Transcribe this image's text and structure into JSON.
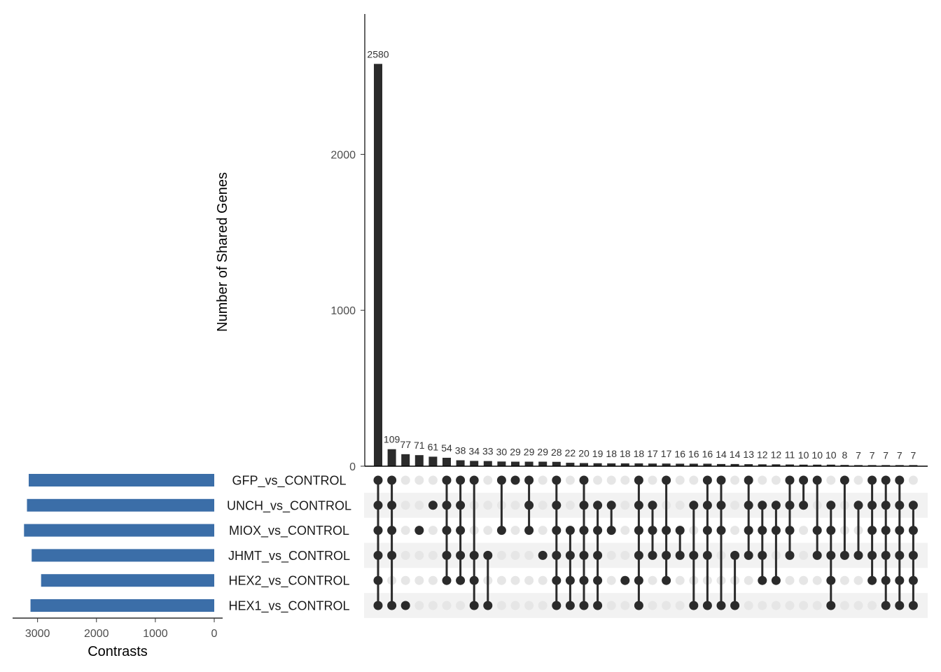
{
  "chart_data": {
    "type": "upset",
    "ylabel": "Number of Shared Genes",
    "set_size_xlabel": "Contrasts",
    "y_ticks": [
      0,
      1000,
      2000
    ],
    "ylim": [
      0,
      2900
    ],
    "set_size_ticks": [
      3000,
      2000,
      1000,
      0
    ],
    "set_size_xlim": [
      3400,
      0
    ],
    "colors": {
      "bar": "#2b2b2b",
      "set_bar": "#3b6ea8",
      "dot_active": "#2b2b2b",
      "dot_inactive": "#e6e6e6",
      "stripe": "#f2f2f2"
    },
    "sets": [
      {
        "name": "GFP_vs_CONTROL",
        "size": 3150
      },
      {
        "name": "UNCH_vs_CONTROL",
        "size": 3180
      },
      {
        "name": "MIOX_vs_CONTROL",
        "size": 3230
      },
      {
        "name": "JHMT_vs_CONTROL",
        "size": 3100
      },
      {
        "name": "HEX2_vs_CONTROL",
        "size": 2940
      },
      {
        "name": "HEX1_vs_CONTROL",
        "size": 3120
      }
    ],
    "intersections": [
      {
        "value": 2580,
        "sets": [
          "GFP_vs_CONTROL",
          "UNCH_vs_CONTROL",
          "MIOX_vs_CONTROL",
          "JHMT_vs_CONTROL",
          "HEX2_vs_CONTROL",
          "HEX1_vs_CONTROL"
        ]
      },
      {
        "value": 109,
        "sets": [
          "GFP_vs_CONTROL",
          "UNCH_vs_CONTROL",
          "MIOX_vs_CONTROL",
          "JHMT_vs_CONTROL",
          "HEX1_vs_CONTROL"
        ]
      },
      {
        "value": 77,
        "sets": [
          "HEX1_vs_CONTROL"
        ]
      },
      {
        "value": 71,
        "sets": [
          "MIOX_vs_CONTROL"
        ]
      },
      {
        "value": 61,
        "sets": [
          "UNCH_vs_CONTROL"
        ]
      },
      {
        "value": 54,
        "sets": [
          "GFP_vs_CONTROL",
          "UNCH_vs_CONTROL",
          "MIOX_vs_CONTROL",
          "JHMT_vs_CONTROL",
          "HEX2_vs_CONTROL"
        ]
      },
      {
        "value": 38,
        "sets": [
          "GFP_vs_CONTROL",
          "UNCH_vs_CONTROL",
          "MIOX_vs_CONTROL",
          "JHMT_vs_CONTROL",
          "HEX2_vs_CONTROL"
        ]
      },
      {
        "value": 34,
        "sets": [
          "GFP_vs_CONTROL",
          "JHMT_vs_CONTROL",
          "HEX2_vs_CONTROL",
          "HEX1_vs_CONTROL"
        ]
      },
      {
        "value": 33,
        "sets": [
          "JHMT_vs_CONTROL",
          "HEX1_vs_CONTROL"
        ]
      },
      {
        "value": 30,
        "sets": [
          "GFP_vs_CONTROL",
          "MIOX_vs_CONTROL"
        ]
      },
      {
        "value": 29,
        "sets": [
          "GFP_vs_CONTROL"
        ]
      },
      {
        "value": 29,
        "sets": [
          "GFP_vs_CONTROL",
          "UNCH_vs_CONTROL",
          "MIOX_vs_CONTROL"
        ]
      },
      {
        "value": 29,
        "sets": [
          "JHMT_vs_CONTROL"
        ]
      },
      {
        "value": 28,
        "sets": [
          "GFP_vs_CONTROL",
          "UNCH_vs_CONTROL",
          "MIOX_vs_CONTROL",
          "JHMT_vs_CONTROL",
          "HEX2_vs_CONTROL",
          "HEX1_vs_CONTROL"
        ]
      },
      {
        "value": 22,
        "sets": [
          "MIOX_vs_CONTROL",
          "JHMT_vs_CONTROL",
          "HEX2_vs_CONTROL",
          "HEX1_vs_CONTROL"
        ]
      },
      {
        "value": 20,
        "sets": [
          "GFP_vs_CONTROL",
          "UNCH_vs_CONTROL",
          "MIOX_vs_CONTROL",
          "JHMT_vs_CONTROL",
          "HEX2_vs_CONTROL",
          "HEX1_vs_CONTROL"
        ]
      },
      {
        "value": 19,
        "sets": [
          "UNCH_vs_CONTROL",
          "MIOX_vs_CONTROL",
          "JHMT_vs_CONTROL",
          "HEX2_vs_CONTROL",
          "HEX1_vs_CONTROL"
        ]
      },
      {
        "value": 18,
        "sets": [
          "UNCH_vs_CONTROL",
          "MIOX_vs_CONTROL"
        ]
      },
      {
        "value": 18,
        "sets": [
          "HEX2_vs_CONTROL"
        ]
      },
      {
        "value": 18,
        "sets": [
          "GFP_vs_CONTROL",
          "UNCH_vs_CONTROL",
          "MIOX_vs_CONTROL",
          "JHMT_vs_CONTROL",
          "HEX2_vs_CONTROL",
          "HEX1_vs_CONTROL"
        ]
      },
      {
        "value": 17,
        "sets": [
          "UNCH_vs_CONTROL",
          "MIOX_vs_CONTROL",
          "JHMT_vs_CONTROL"
        ]
      },
      {
        "value": 17,
        "sets": [
          "GFP_vs_CONTROL",
          "MIOX_vs_CONTROL",
          "JHMT_vs_CONTROL",
          "HEX2_vs_CONTROL"
        ]
      },
      {
        "value": 16,
        "sets": [
          "MIOX_vs_CONTROL",
          "JHMT_vs_CONTROL"
        ]
      },
      {
        "value": 16,
        "sets": [
          "UNCH_vs_CONTROL",
          "JHMT_vs_CONTROL",
          "HEX1_vs_CONTROL"
        ]
      },
      {
        "value": 16,
        "sets": [
          "GFP_vs_CONTROL",
          "UNCH_vs_CONTROL",
          "MIOX_vs_CONTROL",
          "JHMT_vs_CONTROL",
          "HEX1_vs_CONTROL"
        ]
      },
      {
        "value": 14,
        "sets": [
          "GFP_vs_CONTROL",
          "UNCH_vs_CONTROL",
          "MIOX_vs_CONTROL",
          "HEX1_vs_CONTROL"
        ]
      },
      {
        "value": 14,
        "sets": [
          "JHMT_vs_CONTROL",
          "HEX1_vs_CONTROL"
        ]
      },
      {
        "value": 13,
        "sets": [
          "GFP_vs_CONTROL",
          "UNCH_vs_CONTROL",
          "MIOX_vs_CONTROL",
          "JHMT_vs_CONTROL"
        ]
      },
      {
        "value": 12,
        "sets": [
          "UNCH_vs_CONTROL",
          "MIOX_vs_CONTROL",
          "JHMT_vs_CONTROL",
          "HEX2_vs_CONTROL"
        ]
      },
      {
        "value": 12,
        "sets": [
          "UNCH_vs_CONTROL",
          "MIOX_vs_CONTROL",
          "HEX2_vs_CONTROL"
        ]
      },
      {
        "value": 11,
        "sets": [
          "GFP_vs_CONTROL",
          "UNCH_vs_CONTROL",
          "MIOX_vs_CONTROL",
          "JHMT_vs_CONTROL"
        ]
      },
      {
        "value": 10,
        "sets": [
          "GFP_vs_CONTROL",
          "UNCH_vs_CONTROL"
        ]
      },
      {
        "value": 10,
        "sets": [
          "GFP_vs_CONTROL",
          "MIOX_vs_CONTROL",
          "JHMT_vs_CONTROL"
        ]
      },
      {
        "value": 10,
        "sets": [
          "UNCH_vs_CONTROL",
          "MIOX_vs_CONTROL",
          "JHMT_vs_CONTROL",
          "HEX2_vs_CONTROL",
          "HEX1_vs_CONTROL"
        ]
      },
      {
        "value": 8,
        "sets": [
          "GFP_vs_CONTROL",
          "JHMT_vs_CONTROL"
        ]
      },
      {
        "value": 7,
        "sets": [
          "UNCH_vs_CONTROL",
          "JHMT_vs_CONTROL"
        ]
      },
      {
        "value": 7,
        "sets": [
          "GFP_vs_CONTROL",
          "UNCH_vs_CONTROL",
          "MIOX_vs_CONTROL",
          "JHMT_vs_CONTROL",
          "HEX2_vs_CONTROL"
        ]
      },
      {
        "value": 7,
        "sets": [
          "GFP_vs_CONTROL",
          "UNCH_vs_CONTROL",
          "MIOX_vs_CONTROL",
          "JHMT_vs_CONTROL",
          "HEX2_vs_CONTROL",
          "HEX1_vs_CONTROL"
        ]
      },
      {
        "value": 7,
        "sets": [
          "GFP_vs_CONTROL",
          "UNCH_vs_CONTROL",
          "MIOX_vs_CONTROL",
          "JHMT_vs_CONTROL",
          "HEX2_vs_CONTROL",
          "HEX1_vs_CONTROL"
        ]
      },
      {
        "value": 7,
        "sets": [
          "UNCH_vs_CONTROL",
          "MIOX_vs_CONTROL",
          "JHMT_vs_CONTROL",
          "HEX2_vs_CONTROL",
          "HEX1_vs_CONTROL"
        ]
      }
    ]
  }
}
